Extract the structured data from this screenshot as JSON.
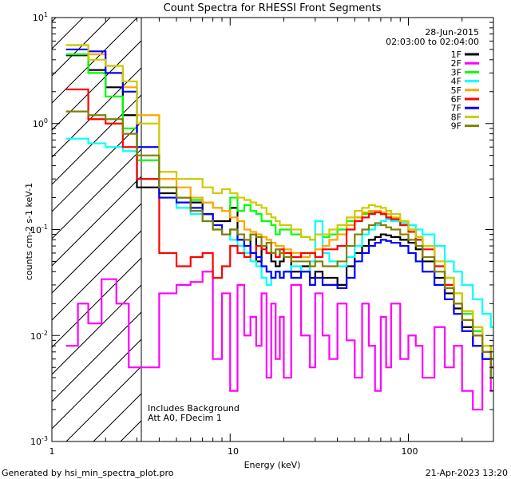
{
  "chart_data": {
    "type": "line",
    "title": "Count Spectra for RHESSI Front Segments",
    "xlabel": "Energy (keV)",
    "ylabel": "counts cm-2 s-1 keV-1",
    "xscale": "log",
    "yscale": "log",
    "xlim": [
      1,
      300
    ],
    "ylim": [
      0.001,
      10
    ],
    "x_tick_labels": [
      "1",
      "10",
      "100"
    ],
    "y_tick_labels": [
      {
        "base": "10",
        "exp": "1"
      },
      {
        "base": "10",
        "exp": "0"
      },
      {
        "base": "10",
        "exp": "-1"
      },
      {
        "base": "10",
        "exp": "-2"
      },
      {
        "base": "10",
        "exp": "-3"
      }
    ],
    "date": "28-Jun-2015",
    "time_range": "02:03:00 to 02:04:00",
    "hatched_region_keV": [
      1,
      3
    ],
    "annotations": [
      "Includes Background",
      "Att A0, FDecim 1"
    ],
    "footer_left": "Generated by hsi_min_spectra_plot.pro",
    "footer_right": "21-Apr-2023 13:20",
    "series": [
      {
        "name": "1F",
        "color": "#000000",
        "x": [
          1.2,
          1.6,
          2.0,
          2.5,
          3.0,
          4.0,
          5.0,
          6.0,
          7.0,
          8.0,
          9.0,
          10,
          11,
          12,
          13,
          14,
          15,
          16,
          17,
          18,
          19,
          20,
          22,
          25,
          28,
          30,
          33,
          36,
          40,
          45,
          50,
          55,
          60,
          65,
          70,
          75,
          80,
          90,
          100,
          110,
          120,
          140,
          160,
          180,
          200,
          230,
          260,
          290
        ],
        "y": [
          4.4,
          3.2,
          2.2,
          1.2,
          0.25,
          0.22,
          0.2,
          0.18,
          0.14,
          0.12,
          0.12,
          0.16,
          0.08,
          0.06,
          0.09,
          0.05,
          0.07,
          0.06,
          0.05,
          0.045,
          0.05,
          0.06,
          0.04,
          0.045,
          0.035,
          0.04,
          0.035,
          0.035,
          0.03,
          0.045,
          0.06,
          0.07,
          0.08,
          0.085,
          0.09,
          0.088,
          0.085,
          0.08,
          0.075,
          0.065,
          0.05,
          0.035,
          0.025,
          0.018,
          0.012,
          0.008,
          0.006,
          0.005
        ]
      },
      {
        "name": "2F",
        "color": "#ff00ff",
        "x": [
          1.2,
          1.4,
          1.6,
          1.9,
          2.3,
          2.7,
          3.0,
          4.0,
          5.0,
          6.0,
          7.0,
          8.0,
          9.0,
          10,
          11,
          12,
          13,
          14,
          15,
          16,
          17,
          18,
          19,
          20,
          22,
          25,
          28,
          30,
          33,
          36,
          40,
          45,
          50,
          55,
          60,
          65,
          70,
          75,
          80,
          90,
          100,
          110,
          120,
          140,
          160,
          180,
          200,
          230,
          260,
          290
        ],
        "y": [
          0.008,
          0.02,
          0.013,
          0.034,
          0.02,
          0.005,
          0.005,
          0.025,
          0.03,
          0.032,
          0.04,
          0.006,
          0.025,
          0.003,
          0.03,
          0.01,
          0.015,
          0.008,
          0.025,
          0.004,
          0.02,
          0.006,
          0.015,
          0.004,
          0.03,
          0.01,
          0.005,
          0.025,
          0.01,
          0.006,
          0.02,
          0.009,
          0.004,
          0.02,
          0.008,
          0.003,
          0.015,
          0.005,
          0.02,
          0.006,
          0.01,
          0.008,
          0.004,
          0.012,
          0.005,
          0.008,
          0.003,
          0.002,
          0.006,
          0.003
        ]
      },
      {
        "name": "3F",
        "color": "#00ff00",
        "x": [
          1.2,
          1.6,
          2.0,
          2.5,
          3.0,
          4.0,
          5.0,
          6.0,
          7.0,
          8.0,
          9.0,
          10,
          11,
          12,
          13,
          14,
          15,
          16,
          17,
          18,
          19,
          20,
          22,
          25,
          28,
          30,
          33,
          36,
          40,
          45,
          50,
          55,
          60,
          65,
          70,
          75,
          80,
          90,
          100,
          110,
          120,
          140,
          160,
          180,
          200,
          230,
          260,
          290
        ],
        "y": [
          4.5,
          3.0,
          1.8,
          0.9,
          0.45,
          0.25,
          0.2,
          0.19,
          0.18,
          0.16,
          0.15,
          0.2,
          0.15,
          0.17,
          0.15,
          0.14,
          0.12,
          0.12,
          0.11,
          0.09,
          0.1,
          0.1,
          0.09,
          0.085,
          0.08,
          0.09,
          0.085,
          0.09,
          0.1,
          0.12,
          0.13,
          0.14,
          0.145,
          0.15,
          0.14,
          0.13,
          0.12,
          0.11,
          0.1,
          0.085,
          0.07,
          0.05,
          0.035,
          0.025,
          0.016,
          0.011,
          0.008,
          0.006
        ]
      },
      {
        "name": "4F",
        "color": "#00ffff",
        "x": [
          1.2,
          1.6,
          2.0,
          2.5,
          3.0,
          4.0,
          5.0,
          6.0,
          7.0,
          8.0,
          9.0,
          10,
          11,
          12,
          13,
          14,
          15,
          16,
          17,
          18,
          19,
          20,
          22,
          25,
          28,
          30,
          33,
          36,
          40,
          45,
          50,
          55,
          60,
          65,
          70,
          75,
          80,
          90,
          100,
          110,
          120,
          140,
          160,
          180,
          200,
          230,
          260,
          290
        ],
        "y": [
          0.72,
          0.65,
          0.6,
          0.55,
          0.3,
          0.2,
          0.16,
          0.14,
          0.12,
          0.1,
          0.09,
          0.08,
          0.07,
          0.06,
          0.05,
          0.045,
          0.035,
          0.03,
          0.035,
          0.04,
          0.035,
          0.04,
          0.045,
          0.04,
          0.05,
          0.12,
          0.06,
          0.05,
          0.045,
          0.055,
          0.07,
          0.09,
          0.1,
          0.11,
          0.12,
          0.125,
          0.12,
          0.115,
          0.11,
          0.1,
          0.09,
          0.07,
          0.05,
          0.04,
          0.03,
          0.022,
          0.016,
          0.012
        ]
      },
      {
        "name": "5F",
        "color": "#ffa500",
        "x": [
          1.2,
          1.6,
          2.0,
          2.5,
          3.0,
          4.0,
          5.0,
          6.0,
          7.0,
          8.0,
          9.0,
          10,
          11,
          12,
          13,
          14,
          15,
          16,
          17,
          18,
          19,
          20,
          22,
          25,
          28,
          30,
          33,
          36,
          40,
          45,
          50,
          55,
          60,
          65,
          70,
          75,
          80,
          90,
          100,
          110,
          120,
          140,
          160,
          180,
          200,
          230,
          260,
          290
        ],
        "y": [
          5.5,
          4.5,
          3.5,
          2.2,
          1.2,
          0.3,
          0.25,
          0.2,
          0.18,
          0.16,
          0.15,
          0.13,
          0.12,
          0.1,
          0.095,
          0.09,
          0.085,
          0.08,
          0.075,
          0.07,
          0.07,
          0.065,
          0.06,
          0.055,
          0.06,
          0.065,
          0.07,
          0.08,
          0.09,
          0.11,
          0.13,
          0.145,
          0.15,
          0.15,
          0.145,
          0.14,
          0.13,
          0.12,
          0.1,
          0.085,
          0.07,
          0.05,
          0.035,
          0.025,
          0.017,
          0.012,
          0.008,
          0.006
        ]
      },
      {
        "name": "6F",
        "color": "#ff0000",
        "x": [
          1.2,
          1.6,
          2.0,
          2.5,
          3.0,
          4.0,
          5.0,
          6.0,
          7.0,
          8.0,
          9.0,
          10,
          11,
          12,
          13,
          14,
          15,
          16,
          17,
          18,
          19,
          20,
          22,
          25,
          28,
          30,
          33,
          36,
          40,
          45,
          50,
          55,
          60,
          65,
          70,
          75,
          80,
          90,
          100,
          110,
          120,
          140,
          160,
          180,
          200,
          230,
          260,
          290
        ],
        "y": [
          2.1,
          1.1,
          1.0,
          0.6,
          0.3,
          0.06,
          0.045,
          0.055,
          0.06,
          0.035,
          0.045,
          0.07,
          0.06,
          0.055,
          0.06,
          0.07,
          0.065,
          0.06,
          0.06,
          0.055,
          0.065,
          0.06,
          0.055,
          0.06,
          0.06,
          0.055,
          0.065,
          0.065,
          0.07,
          0.1,
          0.12,
          0.13,
          0.14,
          0.145,
          0.14,
          0.13,
          0.125,
          0.11,
          0.095,
          0.08,
          0.065,
          0.045,
          0.03,
          0.02,
          0.014,
          0.01,
          0.007,
          0.005
        ]
      },
      {
        "name": "7F",
        "color": "#0000ff",
        "x": [
          1.2,
          1.6,
          2.0,
          2.5,
          3.0,
          4.0,
          5.0,
          6.0,
          7.0,
          8.0,
          9.0,
          10,
          11,
          12,
          13,
          14,
          15,
          16,
          17,
          18,
          19,
          20,
          22,
          25,
          28,
          30,
          33,
          36,
          40,
          45,
          50,
          55,
          60,
          65,
          70,
          75,
          80,
          90,
          100,
          110,
          120,
          140,
          160,
          180,
          200,
          230,
          260,
          290
        ],
        "y": [
          5.0,
          4.8,
          3.0,
          2.0,
          0.6,
          0.2,
          0.18,
          0.16,
          0.14,
          0.11,
          0.09,
          0.1,
          0.08,
          0.07,
          0.06,
          0.055,
          0.045,
          0.04,
          0.035,
          0.04,
          0.035,
          0.04,
          0.035,
          0.04,
          0.03,
          0.035,
          0.03,
          0.03,
          0.028,
          0.035,
          0.05,
          0.06,
          0.07,
          0.075,
          0.08,
          0.078,
          0.075,
          0.07,
          0.06,
          0.05,
          0.04,
          0.03,
          0.022,
          0.016,
          0.011,
          0.008,
          0.006,
          0.004
        ]
      },
      {
        "name": "8F",
        "color": "#cccc00",
        "x": [
          1.2,
          1.6,
          2.0,
          2.5,
          3.0,
          4.0,
          5.0,
          6.0,
          7.0,
          8.0,
          9.0,
          10,
          11,
          12,
          13,
          14,
          15,
          16,
          17,
          18,
          19,
          20,
          22,
          25,
          28,
          30,
          33,
          36,
          40,
          45,
          50,
          55,
          60,
          65,
          70,
          75,
          80,
          90,
          100,
          110,
          120,
          140,
          160,
          180,
          200,
          230,
          260,
          290
        ],
        "y": [
          5.5,
          4.0,
          3.5,
          2.5,
          1.0,
          0.35,
          0.3,
          0.3,
          0.25,
          0.22,
          0.24,
          0.22,
          0.2,
          0.19,
          0.18,
          0.17,
          0.16,
          0.14,
          0.13,
          0.12,
          0.11,
          0.11,
          0.1,
          0.085,
          0.08,
          0.09,
          0.09,
          0.1,
          0.11,
          0.13,
          0.15,
          0.16,
          0.17,
          0.165,
          0.16,
          0.15,
          0.14,
          0.12,
          0.1,
          0.085,
          0.07,
          0.05,
          0.035,
          0.025,
          0.017,
          0.012,
          0.008,
          0.006
        ]
      },
      {
        "name": "9F",
        "color": "#808000",
        "x": [
          1.2,
          1.6,
          2.0,
          2.5,
          3.0,
          4.0,
          5.0,
          6.0,
          7.0,
          8.0,
          9.0,
          10,
          11,
          12,
          13,
          14,
          15,
          16,
          17,
          18,
          19,
          20,
          22,
          25,
          28,
          30,
          33,
          36,
          40,
          45,
          50,
          55,
          60,
          65,
          70,
          75,
          80,
          90,
          100,
          110,
          120,
          140,
          160,
          180,
          200,
          230,
          260,
          290
        ],
        "y": [
          1.3,
          1.2,
          1.1,
          0.8,
          0.5,
          0.25,
          0.2,
          0.15,
          0.12,
          0.1,
          0.09,
          0.1,
          0.09,
          0.08,
          0.09,
          0.085,
          0.07,
          0.075,
          0.06,
          0.065,
          0.06,
          0.055,
          0.05,
          0.05,
          0.045,
          0.05,
          0.045,
          0.045,
          0.05,
          0.07,
          0.09,
          0.1,
          0.11,
          0.115,
          0.11,
          0.105,
          0.1,
          0.09,
          0.08,
          0.07,
          0.055,
          0.04,
          0.028,
          0.02,
          0.014,
          0.01,
          0.007,
          0.004
        ]
      }
    ]
  }
}
